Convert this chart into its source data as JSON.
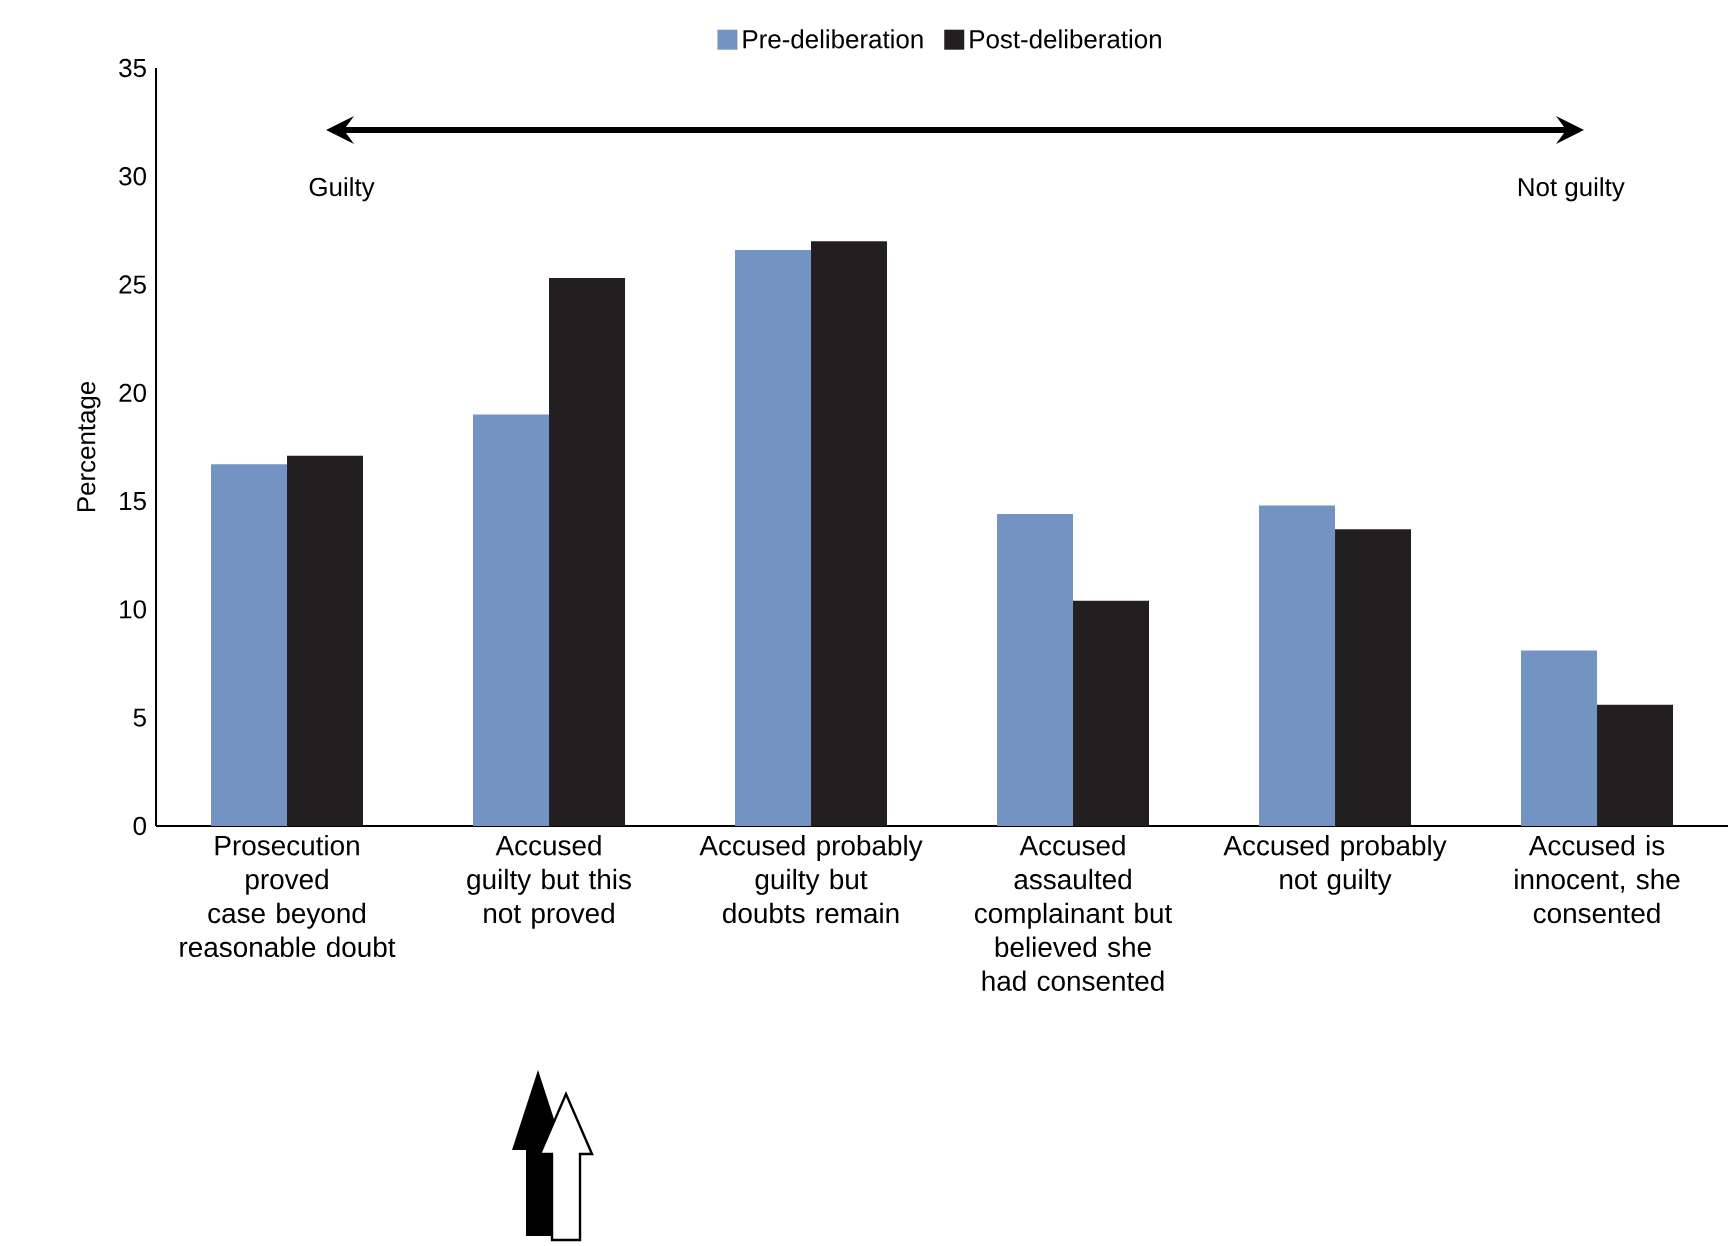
{
  "chart_data": {
    "type": "bar",
    "ylabel": "Percentage",
    "categories": [
      "Prosecution proved case beyond reasonable doubt",
      "Accused guilty but this not proved",
      "Accused probably guilty but doubts remain",
      "Accused assaulted complainant but believed she had consented",
      "Accused probably not guilty",
      "Accused is innocent, she consented"
    ],
    "series": [
      {
        "name": "Pre-deliberation",
        "color": "#7393c2",
        "values": [
          16.7,
          19.0,
          26.6,
          14.4,
          14.8,
          8.1
        ]
      },
      {
        "name": "Post-deliberation",
        "color": "#231f20",
        "values": [
          17.1,
          25.3,
          27.0,
          10.4,
          13.7,
          5.6
        ]
      }
    ],
    "ylim": [
      0,
      35
    ],
    "yticks": [
      0,
      5,
      10,
      15,
      20,
      25,
      30,
      35
    ],
    "legend": "top",
    "annotations": [
      "Guilty",
      "Not guilty"
    ]
  }
}
